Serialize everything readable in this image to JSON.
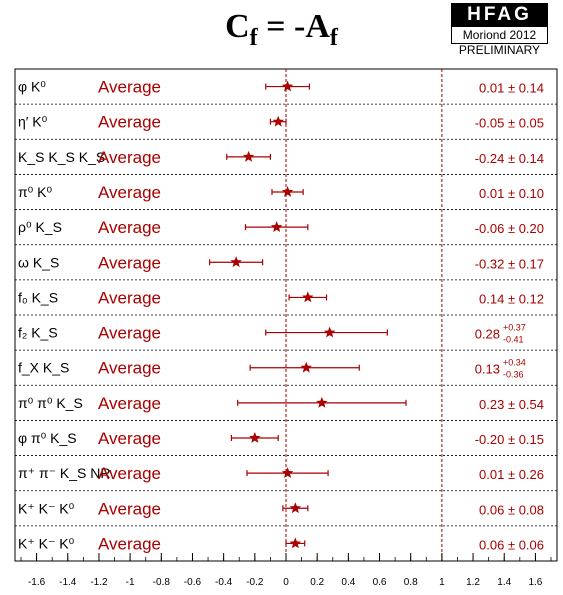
{
  "header": {
    "title_main": "C",
    "title_sub1": "f",
    "title_mid": " = -A",
    "title_sub2": "f",
    "logo": "HFAG",
    "conference": "Moriond 2012",
    "status": "PRELIMINARY"
  },
  "colors": {
    "accent": "#aa0000",
    "frame": "#000000",
    "background": "#ffffff"
  },
  "chart_data": {
    "type": "scatter",
    "title": "C_f = -A_f",
    "xlim": [
      -1.7,
      1.7
    ],
    "x_ticks": [
      "-1.6",
      "-1.4",
      "-1.2",
      "-1",
      "-0.8",
      "-0.6",
      "-0.4",
      "-0.2",
      "0",
      "0.2",
      "0.4",
      "0.6",
      "0.8",
      "1",
      "1.2",
      "1.4",
      "1.6"
    ],
    "reference_lines": [
      0,
      1
    ],
    "legend": "none",
    "series": [
      {
        "mode": "φ K⁰",
        "label": "Average",
        "value": 0.01,
        "err_low": 0.14,
        "err_high": 0.14,
        "result": "0.01 ± 0.14"
      },
      {
        "mode": "η′ K⁰",
        "label": "Average",
        "value": -0.05,
        "err_low": 0.05,
        "err_high": 0.05,
        "result": "-0.05 ± 0.05"
      },
      {
        "mode": "K_S K_S K_S",
        "label": "Average",
        "value": -0.24,
        "err_low": 0.14,
        "err_high": 0.14,
        "result": "-0.24 ± 0.14"
      },
      {
        "mode": "π⁰ K⁰",
        "label": "Average",
        "value": 0.01,
        "err_low": 0.1,
        "err_high": 0.1,
        "result": "0.01 ± 0.10"
      },
      {
        "mode": "ρ⁰ K_S",
        "label": "Average",
        "value": -0.06,
        "err_low": 0.2,
        "err_high": 0.2,
        "result": "-0.06 ± 0.20"
      },
      {
        "mode": "ω K_S",
        "label": "Average",
        "value": -0.32,
        "err_low": 0.17,
        "err_high": 0.17,
        "result": "-0.32 ± 0.17"
      },
      {
        "mode": "f₀ K_S",
        "label": "Average",
        "value": 0.14,
        "err_low": 0.12,
        "err_high": 0.12,
        "result": "0.14 ± 0.12"
      },
      {
        "mode": "f₂ K_S",
        "label": "Average",
        "value": 0.28,
        "err_low": 0.41,
        "err_high": 0.37,
        "result": "0.28",
        "result_sup": "+0.37",
        "result_sub": "-0.41"
      },
      {
        "mode": "f_X K_S",
        "label": "Average",
        "value": 0.13,
        "err_low": 0.36,
        "err_high": 0.34,
        "result": "0.13",
        "result_sup": "+0.34",
        "result_sub": "-0.36"
      },
      {
        "mode": "π⁰ π⁰ K_S",
        "label": "Average",
        "value": 0.23,
        "err_low": 0.54,
        "err_high": 0.54,
        "result": "0.23 ± 0.54"
      },
      {
        "mode": "φ π⁰ K_S",
        "label": "Average",
        "value": -0.2,
        "err_low": 0.15,
        "err_high": 0.15,
        "result": "-0.20 ± 0.15"
      },
      {
        "mode": "π⁺ π⁻ K_S NR",
        "label": "Average",
        "value": 0.01,
        "err_low": 0.26,
        "err_high": 0.26,
        "result": "0.01 ± 0.26"
      },
      {
        "mode": "K⁺ K⁻ K⁰",
        "label": "Average",
        "value": 0.06,
        "err_low": 0.08,
        "err_high": 0.08,
        "result": "0.06 ± 0.08"
      },
      {
        "mode": "K⁺ K⁻ K⁰",
        "label": "Average",
        "value": 0.06,
        "err_low": 0.06,
        "err_high": 0.06,
        "result": "0.06 ± 0.06"
      }
    ]
  }
}
